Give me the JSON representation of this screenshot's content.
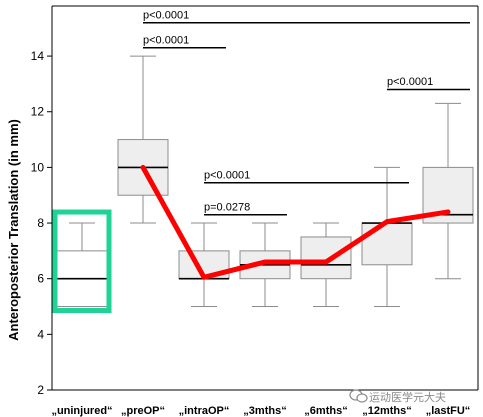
{
  "chart_data": {
    "type": "box",
    "ylabel": "Anteroposterior Translation (in mm)",
    "xlabel": "",
    "ylim": [
      2,
      15.8
    ],
    "yticks": [
      2,
      4,
      6,
      8,
      10,
      12,
      14
    ],
    "categories": [
      "„uninjured“",
      "„preOP“",
      "„intraOP“",
      "„3mths“",
      "„6mths“",
      "„12mths“",
      "„lastFU“"
    ],
    "boxes": [
      {
        "category": "„uninjured“",
        "whisker_low": 5.0,
        "q1": 5.0,
        "median": 6.0,
        "q3": 7.0,
        "whisker_high": 8.0,
        "highlighted": true
      },
      {
        "category": "„preOP“",
        "whisker_low": 8.0,
        "q1": 9.0,
        "median": 10.0,
        "q3": 11.0,
        "whisker_high": 14.0
      },
      {
        "category": "„intraOP“",
        "whisker_low": 5.0,
        "q1": 6.0,
        "median": 6.0,
        "q3": 7.0,
        "whisker_high": 8.0
      },
      {
        "category": "„3mths“",
        "whisker_low": 5.0,
        "q1": 6.0,
        "median": 6.5,
        "q3": 7.0,
        "whisker_high": 8.0
      },
      {
        "category": "„6mths“",
        "whisker_low": 5.0,
        "q1": 6.0,
        "median": 6.5,
        "q3": 7.5,
        "whisker_high": 8.0
      },
      {
        "category": "„12mths“",
        "whisker_low": 5.0,
        "q1": 6.5,
        "median": 8.0,
        "q3": 8.0,
        "whisker_high": 10.0
      },
      {
        "category": "„lastFU“",
        "whisker_low": 6.0,
        "q1": 8.0,
        "median": 8.3,
        "q3": 10.0,
        "whisker_high": 12.3
      }
    ],
    "trend_line": {
      "color": "#ff0000",
      "points": [
        {
          "category": "„preOP“",
          "y": 10.0
        },
        {
          "category": "„intraOP“",
          "y": 6.05
        },
        {
          "category": "„3mths“",
          "y": 6.6
        },
        {
          "category": "„6mths“",
          "y": 6.6
        },
        {
          "category": "„12mths“",
          "y": 8.05
        },
        {
          "category": "„lastFU“",
          "y": 8.4
        }
      ]
    },
    "annotations": [
      {
        "label": "p<0.0001",
        "from": "„preOP“",
        "to": "„lastFU“",
        "y": 15.2,
        "label_y": 15.5
      },
      {
        "label": "p<0.0001",
        "from": "„preOP“",
        "to": "„intraOP“",
        "y": 14.3,
        "label_y": 14.6
      },
      {
        "label": "p<0.0001",
        "from": "„intraOP“",
        "to": "„12mths“",
        "y": 9.45,
        "label_y": 9.75
      },
      {
        "label": "p=0.0278",
        "from": "„intraOP“",
        "to": "„3mths“",
        "y": 8.3,
        "label_y": 8.6
      },
      {
        "label": "p<0.0001",
        "from": "„12mths“",
        "to": "„lastFU“",
        "y": 12.8,
        "label_y": 13.1
      }
    ],
    "grid": false,
    "colors": {
      "box_fill": "#eeeeee",
      "box_stroke": "#8c8c8c",
      "highlight": "#1ed395",
      "trend": "#ff0000"
    }
  },
  "watermark": {
    "text": "运动医学元大夫",
    "icon": "wechat-icon"
  }
}
